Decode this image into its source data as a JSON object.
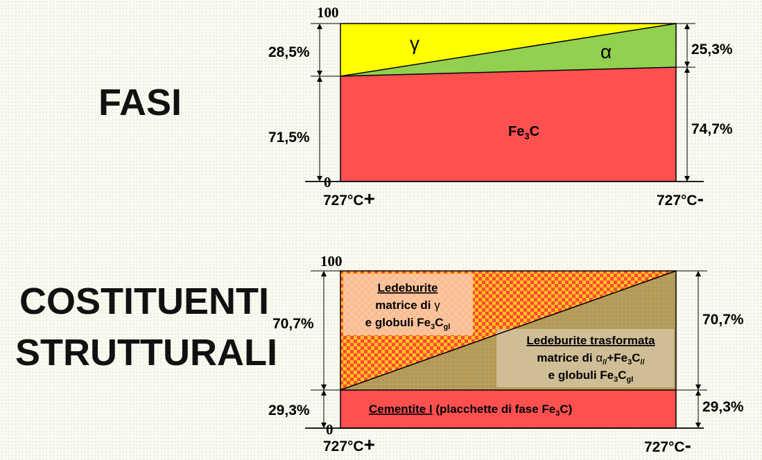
{
  "fasi": {
    "title": "FASI",
    "top_tick": "100",
    "bottom_tick": "0",
    "x_left": "727°C",
    "x_left_sign": "+",
    "x_right": "727°C",
    "x_right_sign": "-",
    "gamma_symbol": "γ",
    "alpha_symbol": "α",
    "fe3c_main": "Fe",
    "fe3c_sub": "3",
    "fe3c_end": "C",
    "left_top_pct": "28,5%",
    "left_bottom_pct": "71,5%",
    "right_top_pct": "25,3%",
    "right_bottom_pct": "74,7%",
    "colors": {
      "gamma": "#ffff00",
      "alpha": "#92d050",
      "fe3c": "#ff5050"
    }
  },
  "costituenti": {
    "title_line1": "COSTITUENTI",
    "title_line2": "STRUTTURALI",
    "top_tick": "100",
    "bottom_tick": "0",
    "x_left": "727°C",
    "x_left_sign": "+",
    "x_right": "727°C",
    "x_right_sign": "-",
    "left_top_pct": "70,7%",
    "left_bottom_pct": "29,3%",
    "right_top_pct": "70,7%",
    "right_bottom_pct": "29,3%",
    "ledeburite": {
      "title": "Ledeburite",
      "line2_prefix": "matrice di ",
      "line2_symbol": "γ",
      "line3_prefix": "e globuli Fe",
      "line3_sub1": "3",
      "line3_c": "C",
      "line3_sub2": "gl"
    },
    "ledeburite_trasformata": {
      "title": "Ledeburite trasformata",
      "line2_prefix": "matrice di ",
      "line2_alpha": "α",
      "line2_sub_alpha": "//",
      "line2_mid": "+Fe",
      "line2_sub3": "3",
      "line2_c": "C",
      "line2_sub_end": "//",
      "line3_prefix": "e globuli Fe",
      "line3_sub1": "3",
      "line3_c": "C",
      "line3_sub2": "gl"
    },
    "cementite": {
      "title": "Cementite I",
      "rest_prefix": " (placchette di fase Fe",
      "rest_sub": "3",
      "rest_end": "C)"
    },
    "colors": {
      "ledeburite_a": "#ff4f3a",
      "ledeburite_b": "#ffd21e",
      "trasformata": "#b9a05d",
      "cementite": "#ff5050"
    }
  }
}
